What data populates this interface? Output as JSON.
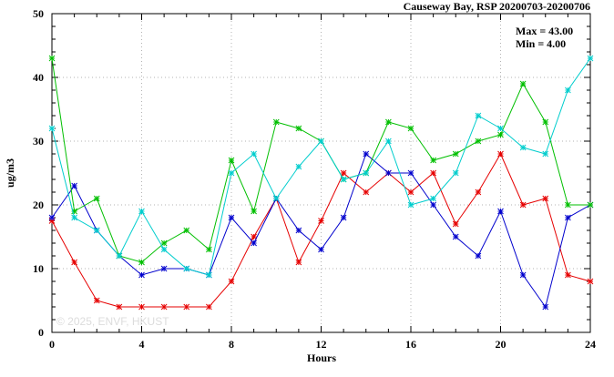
{
  "title": "Causeway Bay, RSP 20200703-20200706",
  "stats": {
    "max_label": "Max = 43.00",
    "min_label": "Min = 4.00"
  },
  "watermark": "© 2025, ENVF, HKUST",
  "colors": {
    "series_red": "#e60000",
    "series_blue": "#0000cd",
    "series_green": "#00bf00",
    "series_cyan": "#00cdcd",
    "grid": "#b3b3b3",
    "axis": "#000000"
  },
  "chart_data": {
    "type": "line",
    "title": "Causeway Bay, RSP 20200703-20200706",
    "xlabel": "Hours",
    "ylabel": "ug/m3",
    "xlim": [
      0,
      24
    ],
    "ylim": [
      0,
      50
    ],
    "xticks": [
      0,
      4,
      8,
      12,
      16,
      20,
      24
    ],
    "yticks": [
      0,
      10,
      20,
      30,
      40,
      50
    ],
    "x_minor_step": 1,
    "y_minor_step": 2,
    "grid": true,
    "legend": "none",
    "marker": "asterisk",
    "max": 43.0,
    "min": 4.0,
    "x": [
      0,
      1,
      2,
      3,
      4,
      5,
      6,
      7,
      8,
      9,
      10,
      11,
      12,
      13,
      14,
      15,
      16,
      17,
      18,
      19,
      20,
      21,
      22,
      23,
      24
    ],
    "series": [
      {
        "name": "red",
        "color": "#e60000",
        "values": [
          17.5,
          11,
          5,
          4,
          4,
          4,
          4,
          4,
          8,
          15,
          21,
          11,
          17.5,
          25,
          22,
          25,
          22,
          25,
          17,
          22,
          28,
          20,
          21,
          9,
          8
        ]
      },
      {
        "name": "blue",
        "color": "#0000cd",
        "values": [
          18,
          23,
          16,
          12,
          9,
          10,
          10,
          9,
          18,
          14,
          21,
          16,
          13,
          18,
          28,
          25,
          25,
          20,
          15,
          12,
          19,
          9,
          4,
          18,
          20
        ]
      },
      {
        "name": "green",
        "color": "#00bf00",
        "values": [
          43,
          19,
          21,
          12,
          11,
          14,
          16,
          13,
          27,
          19,
          33,
          32,
          30,
          24,
          25,
          33,
          32,
          27,
          28,
          30,
          31,
          39,
          33,
          20,
          20
        ]
      },
      {
        "name": "cyan",
        "color": "#00cdcd",
        "values": [
          32,
          18,
          16,
          12,
          19,
          13,
          10,
          9,
          25,
          28,
          21,
          26,
          30,
          24,
          25,
          30,
          20,
          21,
          25,
          34,
          32,
          29,
          28,
          38,
          43
        ]
      }
    ]
  }
}
